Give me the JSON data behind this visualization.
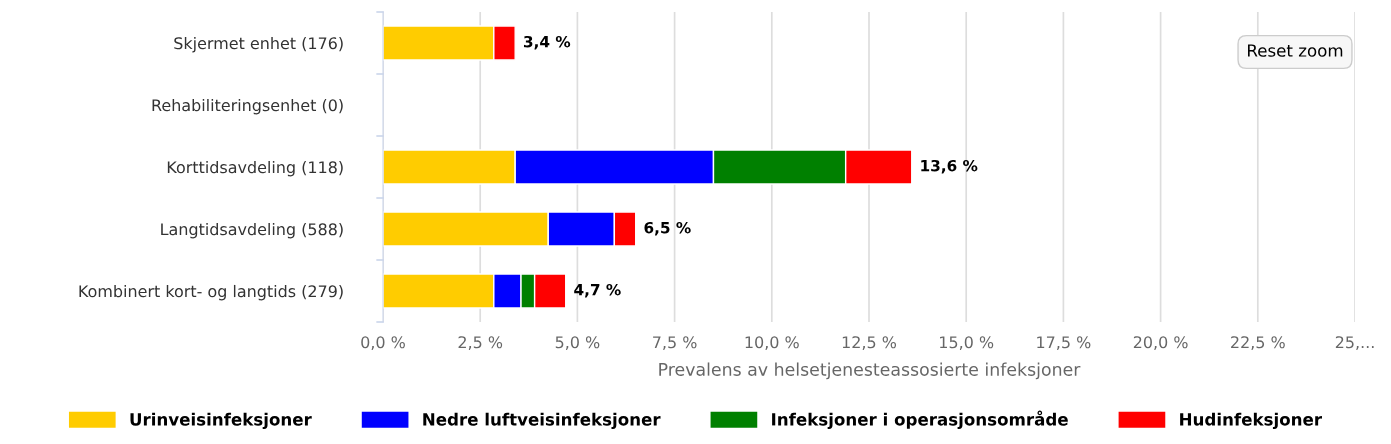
{
  "chart_data": {
    "type": "bar",
    "orientation": "horizontal",
    "stacked": true,
    "categories": [
      "Skjermet enhet (176)",
      "Rehabiliteringsenhet (0)",
      "Korttidsavdeling (118)",
      "Langtidsavdeling (588)",
      "Kombinert kort- og langtids (279)"
    ],
    "series": [
      {
        "name": "Urinveisinfeksjoner",
        "color": "#ffcc00",
        "values": [
          2.85,
          null,
          3.4,
          4.25,
          2.85
        ]
      },
      {
        "name": "Nedre luftveisinfeksjoner",
        "color": "#0000ff",
        "values": [
          null,
          null,
          5.1,
          1.7,
          0.7
        ]
      },
      {
        "name": "Infeksjoner i operasjonsområde",
        "color": "#008000",
        "values": [
          null,
          null,
          3.4,
          null,
          0.35
        ]
      },
      {
        "name": "Hudinfeksjoner",
        "color": "#ff0000",
        "values": [
          0.55,
          null,
          1.7,
          0.55,
          0.8
        ]
      }
    ],
    "totals": [
      "3,4 %",
      null,
      "13,6 %",
      "6,5 %",
      "4,7 %"
    ],
    "xlabel": "Prevalens av helsetjenesteassosierte infeksjoner",
    "xlim": [
      0,
      25
    ],
    "xticks": [
      {
        "value": 0,
        "label": "0,0 %"
      },
      {
        "value": 2.5,
        "label": "2,5 %"
      },
      {
        "value": 5,
        "label": "5,0 %"
      },
      {
        "value": 7.5,
        "label": "7,5 %"
      },
      {
        "value": 10,
        "label": "10,0 %"
      },
      {
        "value": 12.5,
        "label": "12,5 %"
      },
      {
        "value": 15,
        "label": "15,0 %"
      },
      {
        "value": 17.5,
        "label": "17,5 %"
      },
      {
        "value": 20,
        "label": "20,0 %"
      },
      {
        "value": 22.5,
        "label": "22,5 %"
      },
      {
        "value": 25,
        "label": "25,..."
      }
    ],
    "grid": "x",
    "legend": "bottom",
    "annotations": [
      "Reset zoom"
    ]
  }
}
